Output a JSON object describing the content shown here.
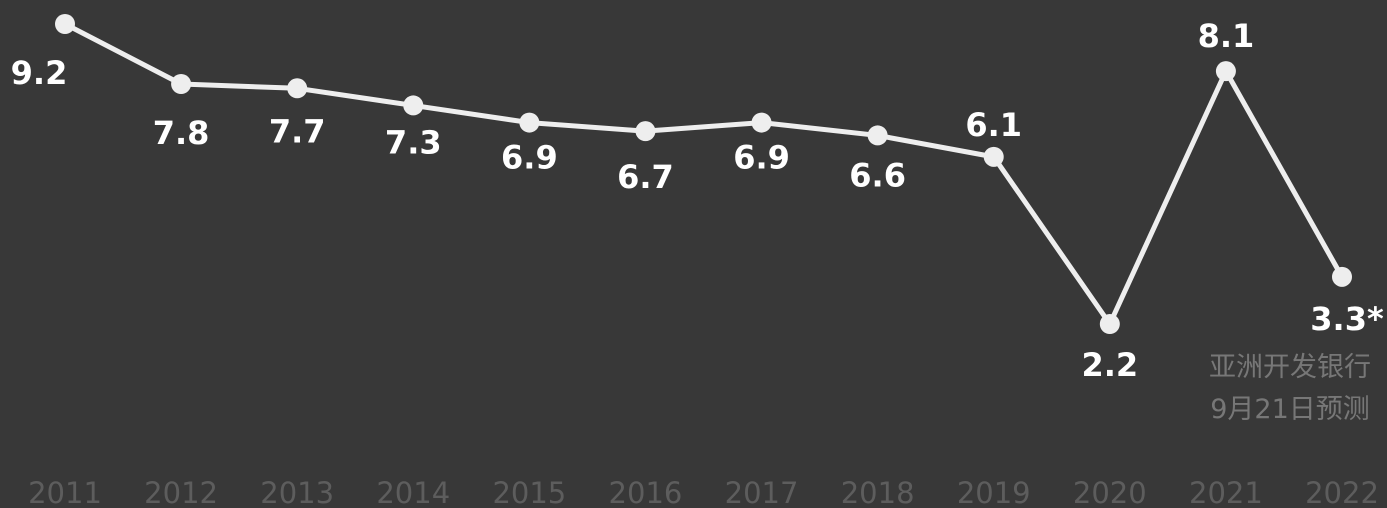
{
  "chart_data": {
    "type": "line",
    "x": [
      "2011",
      "2012",
      "2013",
      "2014",
      "2015",
      "2016",
      "2017",
      "2018",
      "2019",
      "2020",
      "2021",
      "2022"
    ],
    "series": [
      {
        "values": [
          9.2,
          7.8,
          7.7,
          7.3,
          6.9,
          6.7,
          6.9,
          6.6,
          6.1,
          2.2,
          8.1,
          3.3
        ]
      }
    ],
    "data_labels": [
      "9.2",
      "7.8",
      "7.7",
      "7.3",
      "6.9",
      "6.7",
      "6.9",
      "6.6",
      "6.1",
      "2.2",
      "8.1",
      "3.3*"
    ],
    "annotation": [
      "亚洲开发银行",
      "9月21日预测"
    ],
    "ylim": [
      2.2,
      9.2
    ],
    "grid": false,
    "colors": {
      "background": "#383838",
      "line": "#eeeeee",
      "label": "#ffffff",
      "tick": "#5d5d5d",
      "note": "#777777"
    }
  }
}
